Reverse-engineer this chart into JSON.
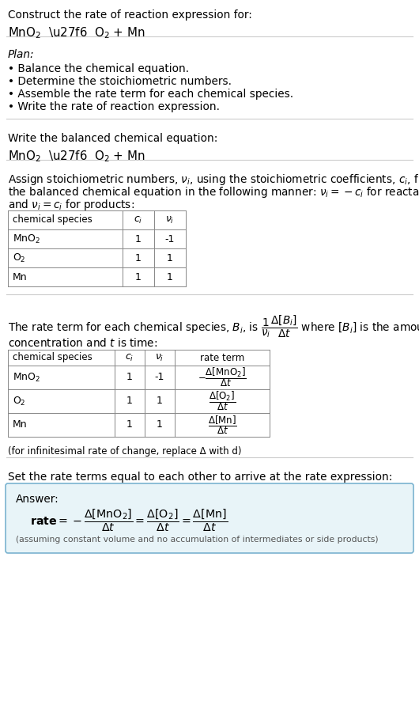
{
  "bg_color": "#ffffff",
  "text_color": "#000000",
  "title_line1": "Construct the rate of reaction expression for:",
  "plan_header": "Plan:",
  "plan_bullets": [
    "• Balance the chemical equation.",
    "• Determine the stoichiometric numbers.",
    "• Assemble the rate term for each chemical species.",
    "• Write the rate of reaction expression."
  ],
  "balanced_header": "Write the balanced chemical equation:",
  "table1_headers": [
    "chemical species",
    "c_i",
    "nu_i"
  ],
  "table1_rows": [
    [
      "MnO2",
      "1",
      "-1"
    ],
    [
      "O2",
      "1",
      "1"
    ],
    [
      "Mn",
      "1",
      "1"
    ]
  ],
  "table2_headers": [
    "chemical species",
    "c_i",
    "nu_i",
    "rate term"
  ],
  "table2_rows": [
    [
      "MnO2",
      "1",
      "-1",
      "mno2"
    ],
    [
      "O2",
      "1",
      "1",
      "o2"
    ],
    [
      "Mn",
      "1",
      "1",
      "mn"
    ]
  ],
  "infinitesimal_note": "(for infinitesimal rate of change, replace Δ with d)",
  "set_rate_text": "Set the rate terms equal to each other to arrive at the rate expression:",
  "answer_label": "Answer:",
  "answer_bg": "#e8f4f8",
  "answer_border": "#7ab3d0",
  "answer_note": "(assuming constant volume and no accumulation of intermediates or side products)"
}
